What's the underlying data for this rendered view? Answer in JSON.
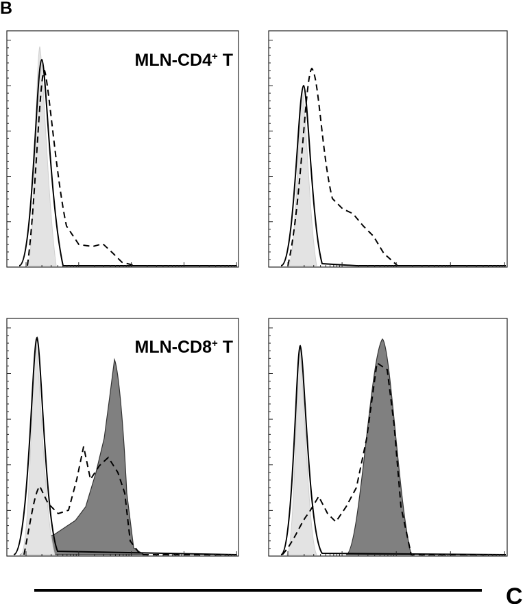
{
  "panel_b": "B",
  "panel_c": "C",
  "panels": [
    {
      "label": {
        "text": "MLN-CD4",
        "sup": "+",
        "suffix": " T"
      }
    },
    {
      "label": {
        "text": "MLN-CD8",
        "sup": "+",
        "suffix": " T"
      }
    }
  ]
}
